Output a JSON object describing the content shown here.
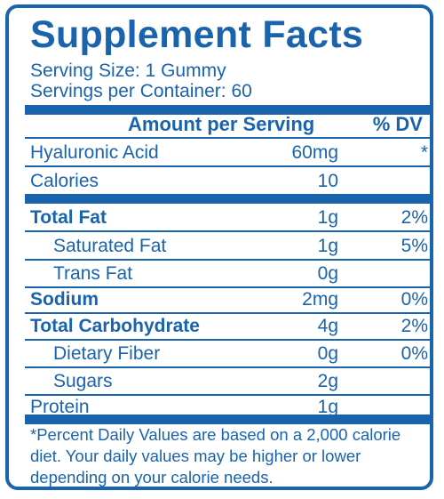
{
  "title": "Supplement Facts",
  "serving_size": "Serving Size: 1 Gummy",
  "servings_per_container": "Servings per Container: 60",
  "header": {
    "amount": "Amount per Serving",
    "dv": "% DV"
  },
  "rows": [
    {
      "name": "Hyaluronic Acid",
      "amount": "60mg",
      "dv": "*"
    },
    {
      "name": "Calories",
      "amount": "10",
      "dv": ""
    },
    {
      "name": "Total Fat",
      "amount": "1g",
      "dv": "2%"
    },
    {
      "name": "Saturated Fat",
      "amount": "1g",
      "dv": "5%"
    },
    {
      "name": "Trans Fat",
      "amount": "0g",
      "dv": ""
    },
    {
      "name": "Sodium",
      "amount": "2mg",
      "dv": "0%"
    },
    {
      "name": "Total Carbohydrate",
      "amount": "4g",
      "dv": "2%"
    },
    {
      "name": "Dietary Fiber",
      "amount": "0g",
      "dv": "0%"
    },
    {
      "name": "Sugars",
      "amount": "2g",
      "dv": ""
    },
    {
      "name": "Protein",
      "amount": "1g",
      "dv": ""
    }
  ],
  "footnote": "*Percent Daily Values are based on a 2,000 calorie diet. Your daily values may be higher or lower depending on your calorie needs.",
  "colors": {
    "ink": "#1a63ad",
    "background": "#ffffff"
  }
}
